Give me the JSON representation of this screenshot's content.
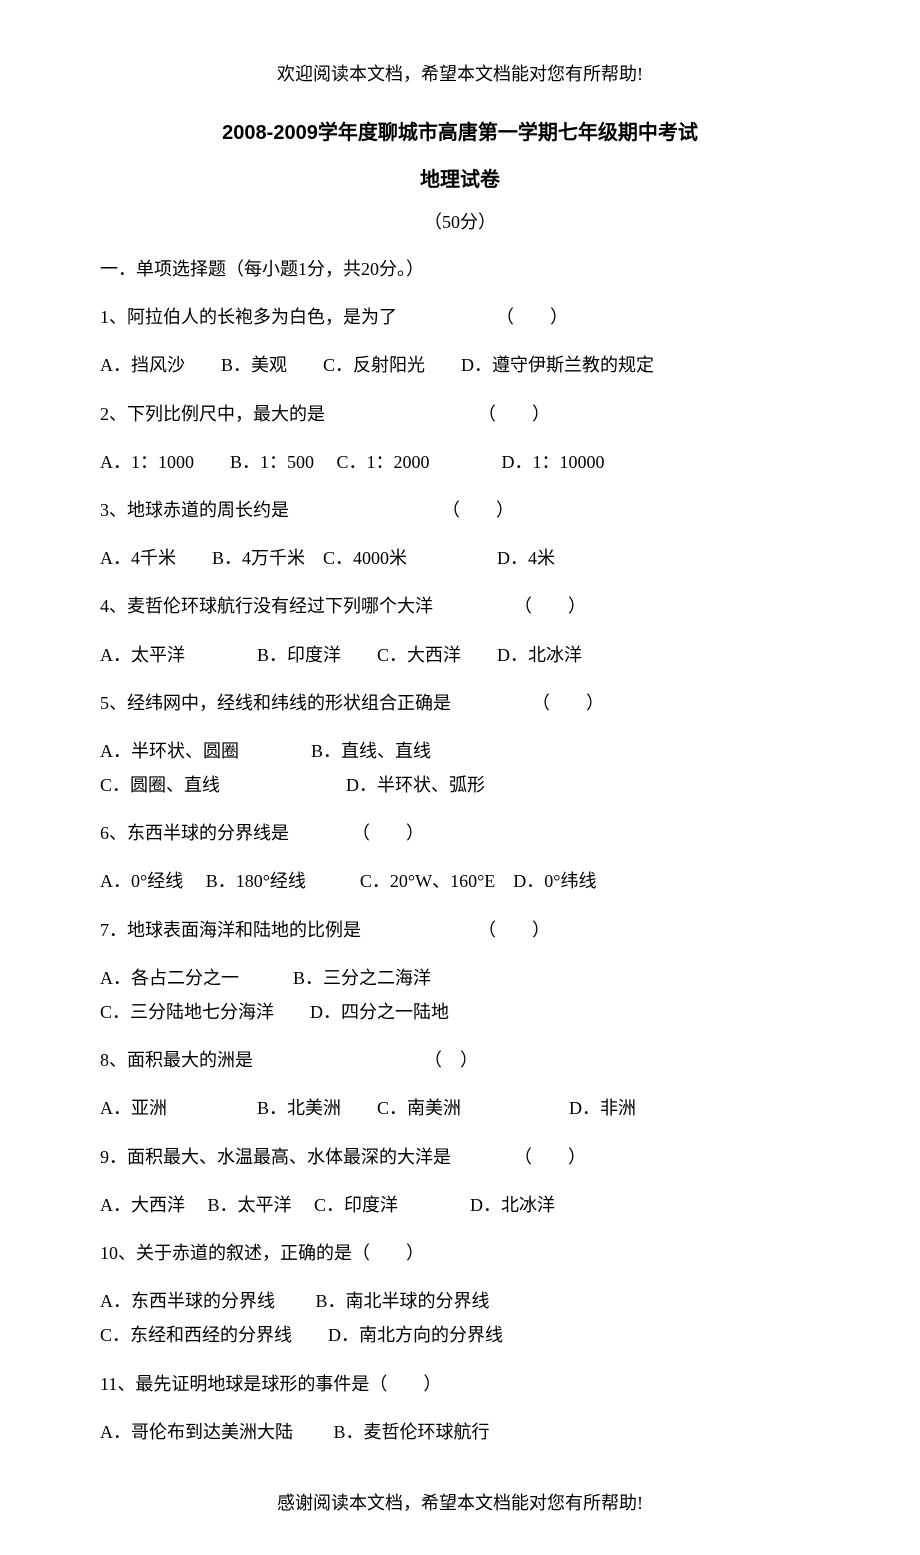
{
  "header_note": "欢迎阅读本文档，希望本文档能对您有所帮助!",
  "footer_note": "感谢阅读本文档，希望本文档能对您有所帮助!",
  "title": "2008-2009学年度聊城市高唐第一学期七年级期中考试",
  "subtitle": "地理试卷",
  "score_note": "（50分）",
  "section_header": "一．单项选择题（每小题1分，共20分。）",
  "questions": [
    {
      "q": "1、阿拉伯人的长袍多为白色，是为了　　　　　　（　　）",
      "options": [
        "A．挡风沙　　B．美观　　C．反射阳光　　D．遵守伊斯兰教的规定"
      ]
    },
    {
      "q": "2、下列比例尺中，最大的是　　　　　　　　　（　　）",
      "options": [
        "A．1：1000　　B．1：500　 C．1：2000　　　　D．1：10000"
      ]
    },
    {
      "q": "3、地球赤道的周长约是　　　　　　　　　（　　）",
      "options": [
        "A．4千米　　B．4万千米　C．4000米　　　　　D．4米"
      ]
    },
    {
      "q": "4、麦哲伦环球航行没有经过下列哪个大洋　　　　　（　　）",
      "options": [
        "A．太平洋　　　　B．印度洋　　C．大西洋　　D．北冰洋"
      ]
    },
    {
      "q": "5、经纬网中，经线和纬线的形状组合正确是　　　　　（　　）",
      "options": [
        "A．半环状、圆圈　　　　B．直线、直线",
        "C．圆圈、直线　　　　　　　D．半环状、弧形"
      ]
    },
    {
      "q": "6、东西半球的分界线是　　　　（　　）",
      "options": [
        "A．0°经线　 B．180°经线　　　C．20°W、160°E D．0°纬线"
      ]
    },
    {
      "q": "7．地球表面海洋和陆地的比例是　　　　　　　（　　）",
      "options": [
        "A．各占二分之一　　　B．三分之二海洋",
        "C．三分陆地七分海洋　　D．四分之一陆地"
      ]
    },
    {
      "q": "8、面积最大的洲是　　　　　　　　　　（　）",
      "options": [
        "A．亚洲　　　　　B．北美洲　　C．南美洲　　　　　　D．非洲"
      ]
    },
    {
      "q": "9．面积最大、水温最高、水体最深的大洋是　　　　（　　）",
      "options": [
        "A．大西洋　 B．太平洋　 C．印度洋　　　　D．北冰洋"
      ]
    },
    {
      "q": "10、关于赤道的叙述，正确的是（　　）",
      "options": [
        "A．东西半球的分界线　　 B．南北半球的分界线",
        "C．东经和西经的分界线　　D．南北方向的分界线"
      ]
    },
    {
      "q": "11、最先证明地球是球形的事件是（　　）",
      "options": [
        "A．哥伦布到达美洲大陆　　 B．麦哲伦环球航行"
      ]
    }
  ]
}
